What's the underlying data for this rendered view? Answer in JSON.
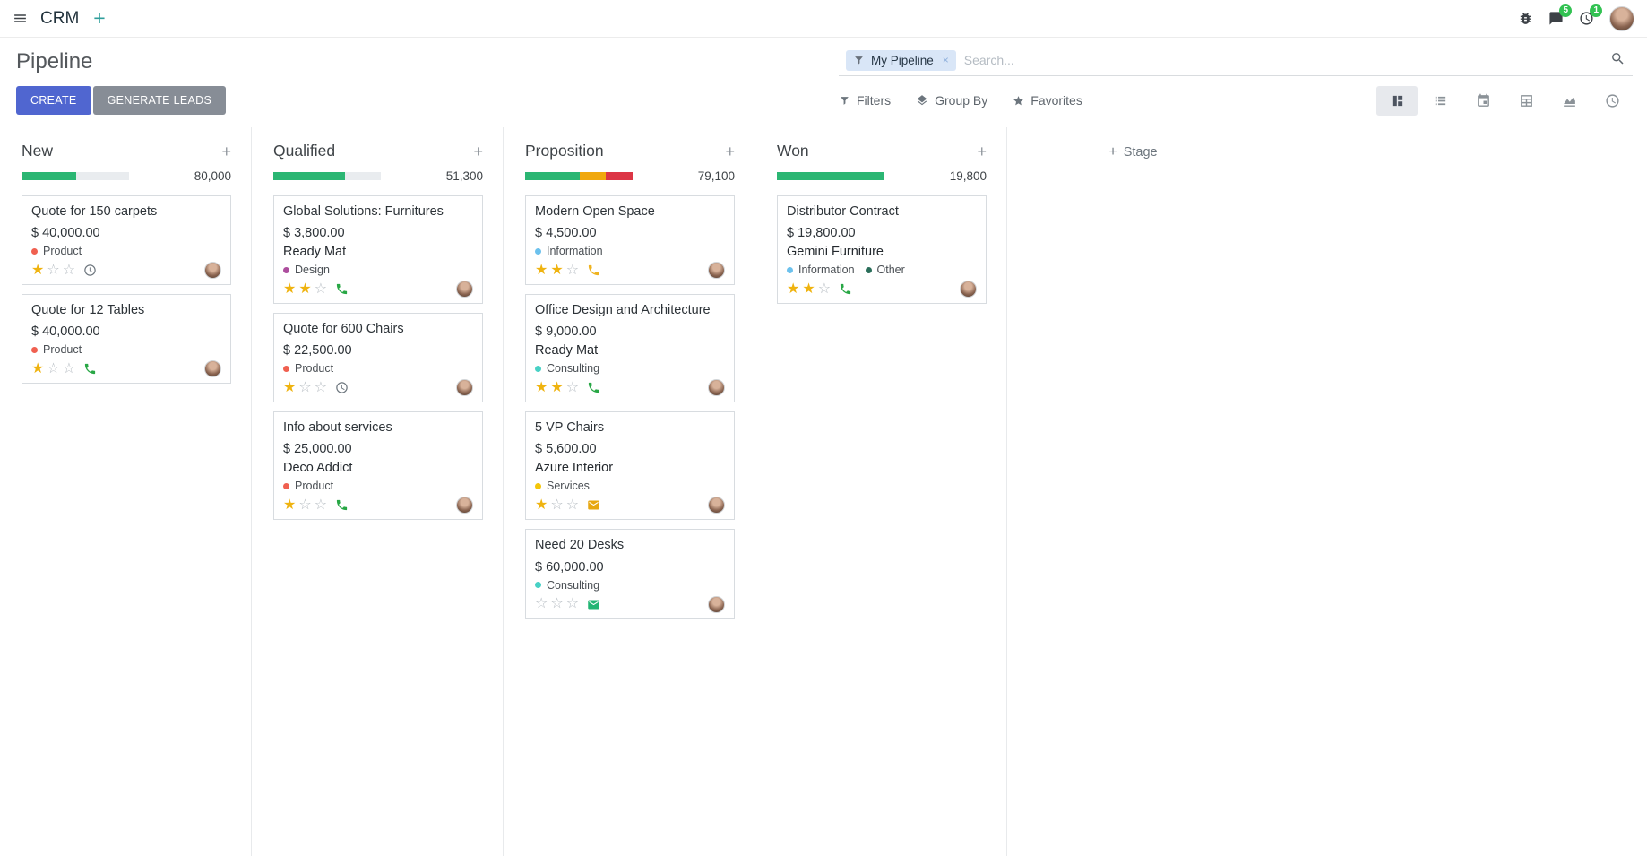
{
  "colors": {
    "primary_button": "#5066d0",
    "secondary_button": "#878d96",
    "badge_green": "#32c252",
    "star_gold": "#efb30f",
    "nav_plus": "#2f9e9b"
  },
  "navbar": {
    "app_name": "CRM",
    "messages_badge": "5",
    "activities_badge": "1"
  },
  "control_panel": {
    "title": "Pipeline",
    "buttons": {
      "create": "CREATE",
      "generate_leads": "GENERATE LEADS"
    },
    "search": {
      "facet_label": "My Pipeline",
      "remove_facet": "×",
      "placeholder": "Search..."
    },
    "menus": {
      "filters": "Filters",
      "group_by": "Group By",
      "favorites": "Favorites"
    }
  },
  "board": {
    "add_stage": "Stage",
    "columns": [
      {
        "name": "New",
        "total": "80,000",
        "progress": [
          {
            "pct": 51,
            "color": "#2bb673"
          }
        ],
        "cards": [
          {
            "title": "Quote for 150 carpets",
            "amount": "$ 40,000.00",
            "tags": [
              {
                "label": "Product",
                "color": "#f06050"
              }
            ],
            "stars": 1,
            "activity": {
              "icon": "clock-icon",
              "color": "#6c757d"
            }
          },
          {
            "title": "Quote for 12 Tables",
            "amount": "$ 40,000.00",
            "tags": [
              {
                "label": "Product",
                "color": "#f06050"
              }
            ],
            "stars": 1,
            "activity": {
              "icon": "phone-icon",
              "color": "#28a745"
            }
          }
        ]
      },
      {
        "name": "Qualified",
        "total": "51,300",
        "progress": [
          {
            "pct": 67,
            "color": "#2bb673"
          }
        ],
        "cards": [
          {
            "title": "Global Solutions: Furnitures",
            "amount": "$ 3,800.00",
            "partner": "Ready Mat",
            "tags": [
              {
                "label": "Design",
                "color": "#ad4e9e"
              }
            ],
            "stars": 2,
            "activity": {
              "icon": "phone-icon",
              "color": "#28a745"
            }
          },
          {
            "title": "Quote for 600 Chairs",
            "amount": "$ 22,500.00",
            "tags": [
              {
                "label": "Product",
                "color": "#f06050"
              }
            ],
            "stars": 1,
            "activity": {
              "icon": "clock-icon",
              "color": "#6c757d"
            }
          },
          {
            "title": "Info about services",
            "amount": "$ 25,000.00",
            "partner": "Deco Addict",
            "tags": [
              {
                "label": "Product",
                "color": "#f06050"
              }
            ],
            "stars": 1,
            "activity": {
              "icon": "phone-icon",
              "color": "#28a745"
            }
          }
        ]
      },
      {
        "name": "Proposition",
        "total": "79,100",
        "progress": [
          {
            "pct": 51,
            "color": "#2bb673"
          },
          {
            "pct": 24,
            "color": "#f0a80e"
          },
          {
            "pct": 25,
            "color": "#dc3545"
          }
        ],
        "cards": [
          {
            "title": "Modern Open Space",
            "amount": "$ 4,500.00",
            "tags": [
              {
                "label": "Information",
                "color": "#6cc1ed"
              }
            ],
            "stars": 2,
            "activity": {
              "icon": "phone-icon",
              "color": "#efb320"
            }
          },
          {
            "title": "Office Design and Architecture",
            "amount": "$ 9,000.00",
            "partner": "Ready Mat",
            "tags": [
              {
                "label": "Consulting",
                "color": "#48d1c5"
              }
            ],
            "stars": 2,
            "activity": {
              "icon": "phone-icon",
              "color": "#28a745"
            }
          },
          {
            "title": "5 VP Chairs",
            "amount": "$ 5,600.00",
            "partner": "Azure Interior",
            "tags": [
              {
                "label": "Services",
                "color": "#f4c609"
              }
            ],
            "stars": 1,
            "activity": {
              "icon": "envelope-icon",
              "color": "#e7a711"
            }
          },
          {
            "title": "Need 20 Desks",
            "amount": "$ 60,000.00",
            "tags": [
              {
                "label": "Consulting",
                "color": "#48d1c5"
              }
            ],
            "stars": 0,
            "activity": {
              "icon": "envelope-icon",
              "color": "#21b573"
            }
          }
        ]
      },
      {
        "name": "Won",
        "total": "19,800",
        "progress": [
          {
            "pct": 100,
            "color": "#2bb673"
          }
        ],
        "cards": [
          {
            "title": "Distributor Contract",
            "amount": "$ 19,800.00",
            "partner": "Gemini Furniture",
            "tags": [
              {
                "label": "Information",
                "color": "#6cc1ed"
              },
              {
                "label": "Other",
                "color": "#2a6e5a"
              }
            ],
            "stars": 2,
            "activity": {
              "icon": "phone-icon",
              "color": "#28a745"
            }
          }
        ]
      }
    ]
  }
}
